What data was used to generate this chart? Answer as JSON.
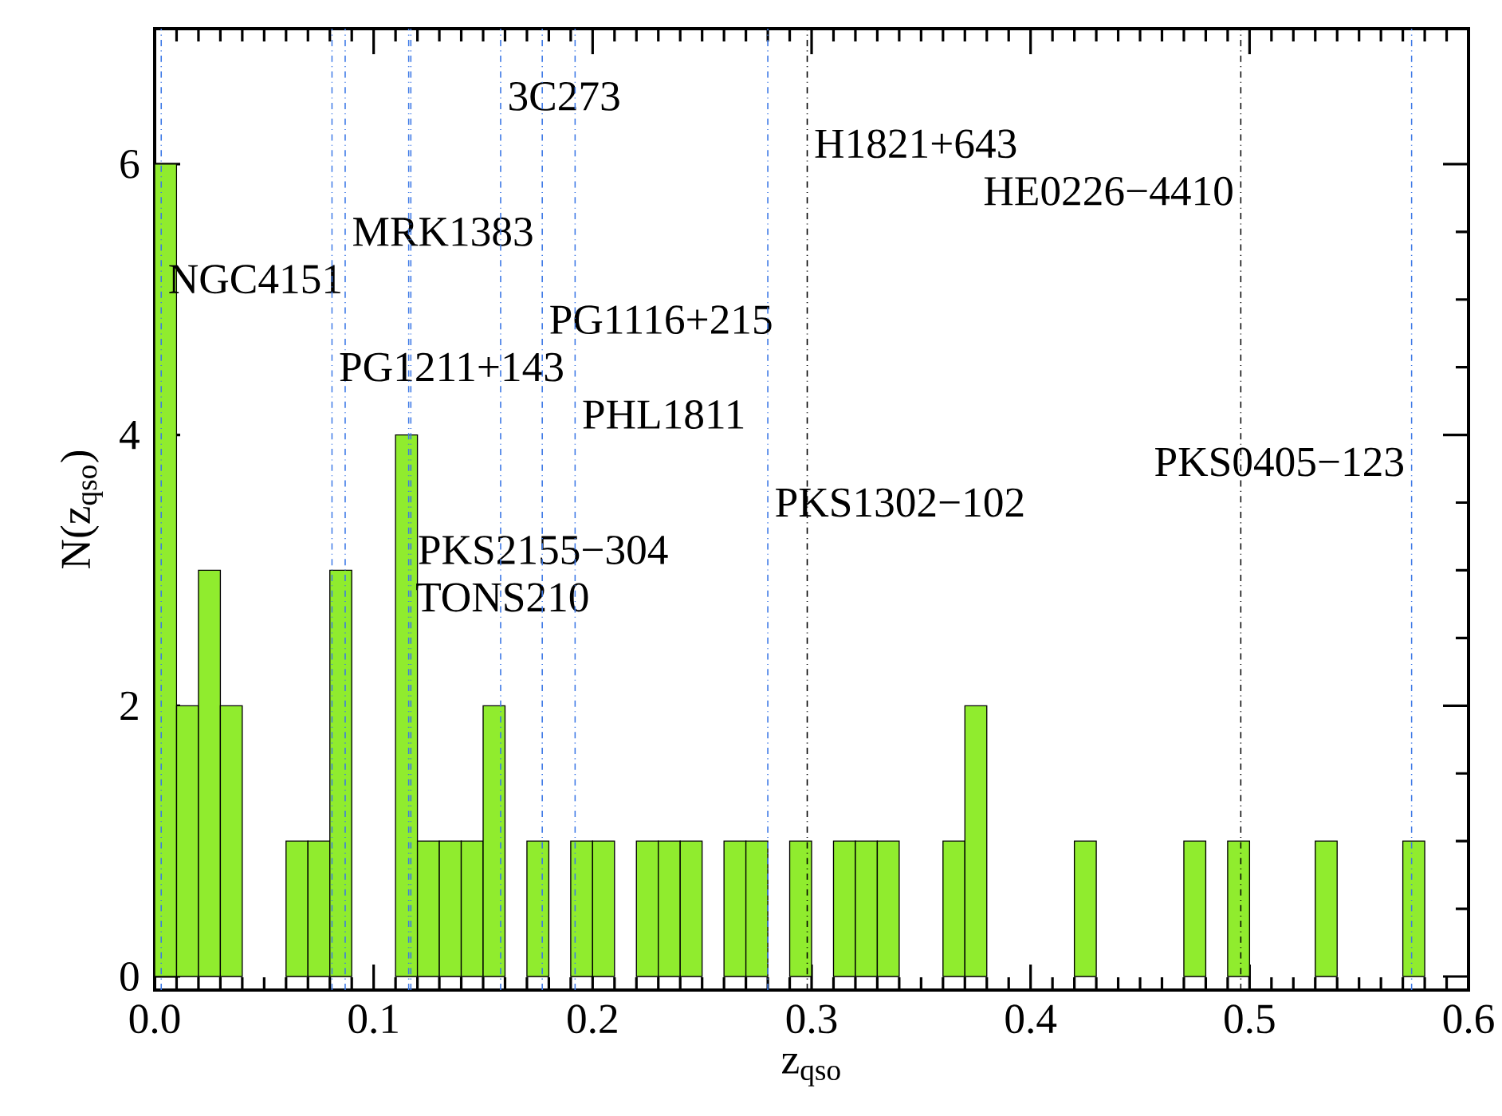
{
  "chart_data": {
    "type": "histogram",
    "xlabel": "z$_{qso}$",
    "ylabel": "N(z$_{qso}$)",
    "bins": [
      0,
      0.01,
      0.02,
      0.03,
      0.04,
      0.05,
      0.06,
      0.07,
      0.08,
      0.09,
      0.1,
      0.11,
      0.12,
      0.13,
      0.14,
      0.15,
      0.16,
      0.17,
      0.18,
      0.19,
      0.2,
      0.21,
      0.22,
      0.23,
      0.24,
      0.25,
      0.26,
      0.27,
      0.28,
      0.29,
      0.3,
      0.31,
      0.32,
      0.33,
      0.34,
      0.35,
      0.36,
      0.37,
      0.38,
      0.39,
      0.4,
      0.41,
      0.42,
      0.43,
      0.44,
      0.45,
      0.46,
      0.47,
      0.48,
      0.49,
      0.5,
      0.51,
      0.52,
      0.53,
      0.54,
      0.55,
      0.56,
      0.57,
      0.58
    ],
    "values": [
      6,
      2,
      3,
      2,
      0,
      0,
      1,
      1,
      3,
      0,
      0,
      4,
      1,
      1,
      1,
      2,
      0,
      1,
      0,
      1,
      1,
      0,
      1,
      1,
      1,
      0,
      1,
      1,
      0,
      1,
      0,
      1,
      1,
      1,
      0,
      0,
      1,
      2,
      0,
      0,
      0,
      0,
      1,
      0,
      0,
      0,
      0,
      1,
      0,
      1,
      0,
      0,
      0,
      1,
      0,
      0,
      0,
      1
    ],
    "color": "#90ec2e",
    "xlim": [
      0,
      0.6
    ],
    "ylim": [
      -0.1,
      7
    ],
    "xticks": [
      {
        "value": 0,
        "label": "0.0"
      },
      0.1,
      0.2,
      0.3,
      0.4,
      0.5,
      0.6
    ],
    "yticks": [
      0,
      2,
      4,
      6
    ],
    "ref_lines": [
      {
        "axis": "x",
        "value": 0.003,
        "label": "NGC4151",
        "color": "#3c78e6",
        "line_style": "dashdot"
      },
      {
        "axis": "x",
        "value": 0.087,
        "label": "MRK1383",
        "color": "#3c78e6",
        "line_style": "dashdot"
      },
      {
        "axis": "x",
        "value": 0.081,
        "label": "PG1211+143",
        "color": "#3c78e6",
        "line_style": "dashdot"
      },
      {
        "axis": "x",
        "value": 0.117,
        "label": "PKS2155−304",
        "color": "#3c78e6",
        "line_style": "dashdot"
      },
      {
        "axis": "x",
        "value": 0.116,
        "label": "TONS210",
        "color": "#3c78e6",
        "line_style": "dashdot"
      },
      {
        "axis": "x",
        "value": 0.158,
        "label": "3C273",
        "color": "#3c78e6",
        "line_style": "dashdot"
      },
      {
        "axis": "x",
        "value": 0.177,
        "label": "PG1116+215",
        "color": "#3c78e6",
        "line_style": "dashdot"
      },
      {
        "axis": "x",
        "value": 0.192,
        "label": "PHL1811",
        "color": "#3c78e6",
        "line_style": "dashdot"
      },
      {
        "axis": "x",
        "value": 0.28,
        "label": "PKS1302−102",
        "color": "#3c78e6",
        "line_style": "dashdot"
      },
      {
        "axis": "x",
        "value": 0.298,
        "label": "H1821+643",
        "color": "#000000",
        "line_style": "dashdot"
      },
      {
        "axis": "x",
        "value": 0.496,
        "label": "HE0226−4410",
        "color": "#000000",
        "line_style": "dashdot"
      },
      {
        "axis": "x",
        "value": 0.574,
        "label": "PKS0405−123",
        "color": "#3c78e6",
        "line_style": "dashdot"
      }
    ]
  }
}
